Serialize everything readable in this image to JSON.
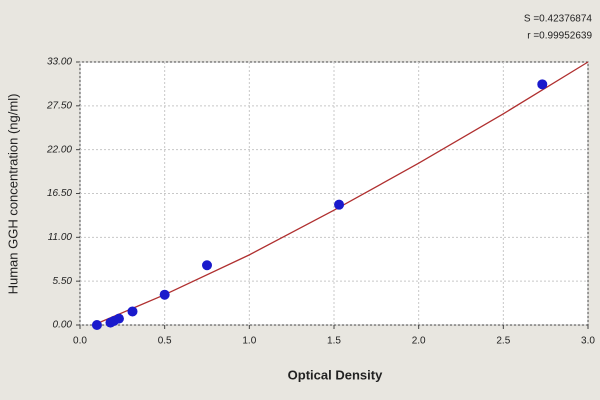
{
  "chart_data": {
    "type": "scatter",
    "x_label": "Optical Density",
    "y_label": "Human GGH concentration (ng/ml)",
    "annotations": [
      "S =0.42376874",
      "r =0.99952639"
    ],
    "series": [
      {
        "type": "scatter",
        "color": "#1a1acc",
        "x": [
          0.1,
          0.18,
          0.2,
          0.23,
          0.31,
          0.5,
          0.75,
          1.53,
          2.73
        ],
        "values": [
          0.0,
          0.3,
          0.5,
          0.8,
          1.7,
          3.8,
          7.5,
          15.1,
          30.2
        ]
      },
      {
        "type": "line",
        "color": "#b03030",
        "x": [
          0.08,
          0.5,
          1.0,
          1.5,
          2.0,
          2.5,
          3.0
        ],
        "values": [
          0.0,
          3.8,
          8.8,
          14.4,
          20.3,
          26.5,
          33.0
        ]
      }
    ],
    "xlim": [
      0,
      3
    ],
    "ylim": [
      0,
      33
    ],
    "xticks": [
      {
        "value": 0,
        "label": "0.0"
      },
      0.5,
      {
        "value": 1,
        "label": "1.0"
      },
      1.5,
      {
        "value": 2,
        "label": "2.0"
      },
      2.5,
      {
        "value": 3,
        "label": "3.0"
      }
    ],
    "yticks": [
      {
        "value": 0,
        "label": "0.00"
      },
      {
        "value": 5.5,
        "label": "5.50"
      },
      {
        "value": 11,
        "label": "11.00"
      },
      {
        "value": 16.5,
        "label": "16.50"
      },
      {
        "value": 22,
        "label": "22.00"
      },
      {
        "value": 27.5,
        "label": "27.50"
      },
      {
        "value": 33,
        "label": "33.00"
      }
    ],
    "grid": true
  }
}
